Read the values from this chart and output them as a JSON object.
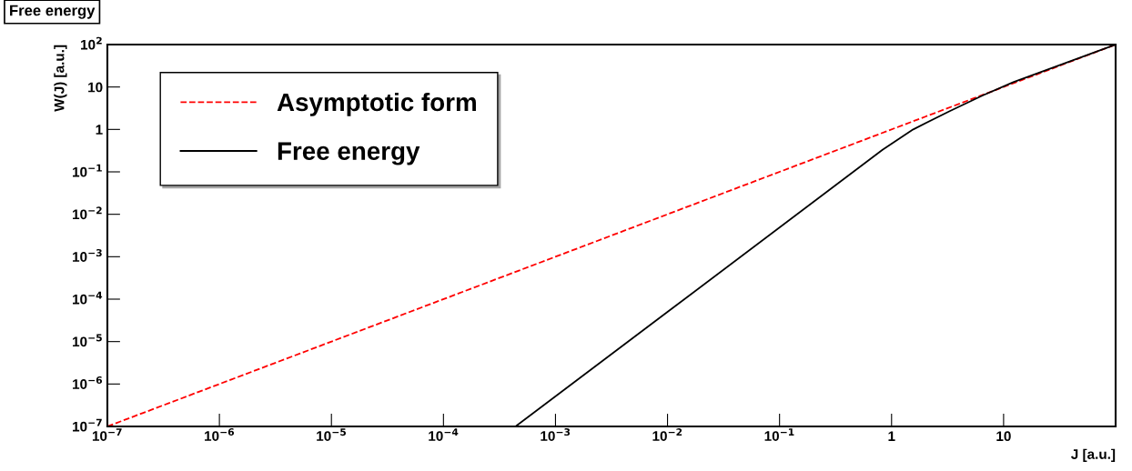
{
  "chart_data": {
    "type": "line",
    "title": "Free energy",
    "xlabel": "J [a.u.]",
    "ylabel": "W(J) [a.u.]",
    "log": "xy",
    "grid": false,
    "legend": "top left",
    "xlim": [
      1e-07,
      100
    ],
    "ylim": [
      1e-07,
      100
    ],
    "xticks": [
      {
        "value": 1e-07,
        "label": "10$^{−7}$"
      },
      {
        "value": 1e-06,
        "label": "10$^{−6}$"
      },
      {
        "value": 1e-05,
        "label": "10$^{−5}$"
      },
      {
        "value": 0.0001,
        "label": "10$^{−4}$"
      },
      {
        "value": 0.001,
        "label": "10$^{−3}$"
      },
      {
        "value": 0.01,
        "label": "10$^{−2}$"
      },
      {
        "value": 0.1,
        "label": "10$^{−1}$"
      },
      1,
      10
    ],
    "yticks": [
      {
        "value": 1e-07,
        "label": "10$^{−7}$"
      },
      {
        "value": 1e-06,
        "label": "10$^{−6}$"
      },
      {
        "value": 1e-05,
        "label": "10$^{−5}$"
      },
      {
        "value": 0.0001,
        "label": "10$^{−4}$"
      },
      {
        "value": 0.001,
        "label": "10$^{−3}$"
      },
      {
        "value": 0.01,
        "label": "10$^{−2}$"
      },
      {
        "value": 0.1,
        "label": "10$^{−1}$"
      },
      1,
      10,
      {
        "value": 100,
        "label": "10$^{2}$"
      }
    ],
    "series": [
      {
        "name": "Asymptotic form",
        "color": "#ff0000",
        "line_style": "dashed",
        "x": [
          1e-07,
          100
        ],
        "values": [
          1e-07,
          100
        ]
      },
      {
        "name": "Free energy",
        "color": "#000000",
        "line_style": "solid",
        "x": [
          0.00044,
          0.01,
          0.83,
          1.56,
          3.3,
          6.5,
          12.2,
          100
        ],
        "values": [
          1e-07,
          5e-05,
          0.33,
          1.0,
          2.7,
          6.3,
          13,
          100
        ]
      }
    ]
  }
}
